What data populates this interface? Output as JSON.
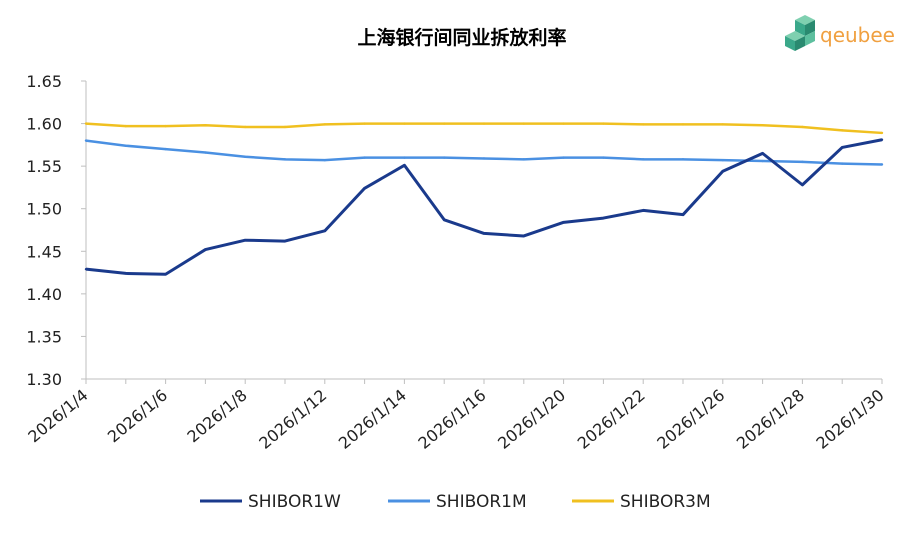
{
  "logo": {
    "text": "qeubee",
    "colors": [
      "#3aa88a",
      "#f0a040"
    ]
  },
  "chart_data": {
    "type": "line",
    "title": "上海银行间同业拆放利率",
    "xlabel": "",
    "ylabel": "",
    "ylim": [
      1.3,
      1.65
    ],
    "yticks": [
      "1.30",
      "1.35",
      "1.40",
      "1.45",
      "1.50",
      "1.55",
      "1.60",
      "1.65"
    ],
    "x": [
      "2026/1/4",
      "2026/1/5",
      "2026/1/6",
      "2026/1/7",
      "2026/1/8",
      "2026/1/9",
      "2026/1/12",
      "2026/1/13",
      "2026/1/14",
      "2026/1/15",
      "2026/1/16",
      "2026/1/19",
      "2026/1/20",
      "2026/1/21",
      "2026/1/22",
      "2026/1/23",
      "2026/1/26",
      "2026/1/27",
      "2026/1/28",
      "2026/1/29",
      "2026/1/30"
    ],
    "xtick_labels": [
      "2026/1/4",
      "2026/1/6",
      "2026/1/8",
      "2026/1/12",
      "2026/1/14",
      "2026/1/16",
      "2026/1/20",
      "2026/1/22",
      "2026/1/26",
      "2026/1/28",
      "2026/1/30"
    ],
    "grid": false,
    "legend_position": "bottom",
    "series": [
      {
        "name": "SHIBOR1W",
        "color": "#1a3a8c",
        "values": [
          1.429,
          1.424,
          1.423,
          1.452,
          1.463,
          1.462,
          1.474,
          1.524,
          1.551,
          1.487,
          1.471,
          1.468,
          1.484,
          1.489,
          1.498,
          1.493,
          1.544,
          1.565,
          1.528,
          1.572,
          1.581
        ]
      },
      {
        "name": "SHIBOR1M",
        "color": "#4a90e2",
        "values": [
          1.58,
          1.574,
          1.57,
          1.566,
          1.561,
          1.558,
          1.557,
          1.56,
          1.56,
          1.56,
          1.559,
          1.558,
          1.56,
          1.56,
          1.558,
          1.558,
          1.557,
          1.556,
          1.555,
          1.553,
          1.552
        ]
      },
      {
        "name": "SHIBOR3M",
        "color": "#f0c020",
        "values": [
          1.6,
          1.597,
          1.597,
          1.598,
          1.596,
          1.596,
          1.599,
          1.6,
          1.6,
          1.6,
          1.6,
          1.6,
          1.6,
          1.6,
          1.599,
          1.599,
          1.599,
          1.598,
          1.596,
          1.592,
          1.589
        ]
      }
    ]
  }
}
